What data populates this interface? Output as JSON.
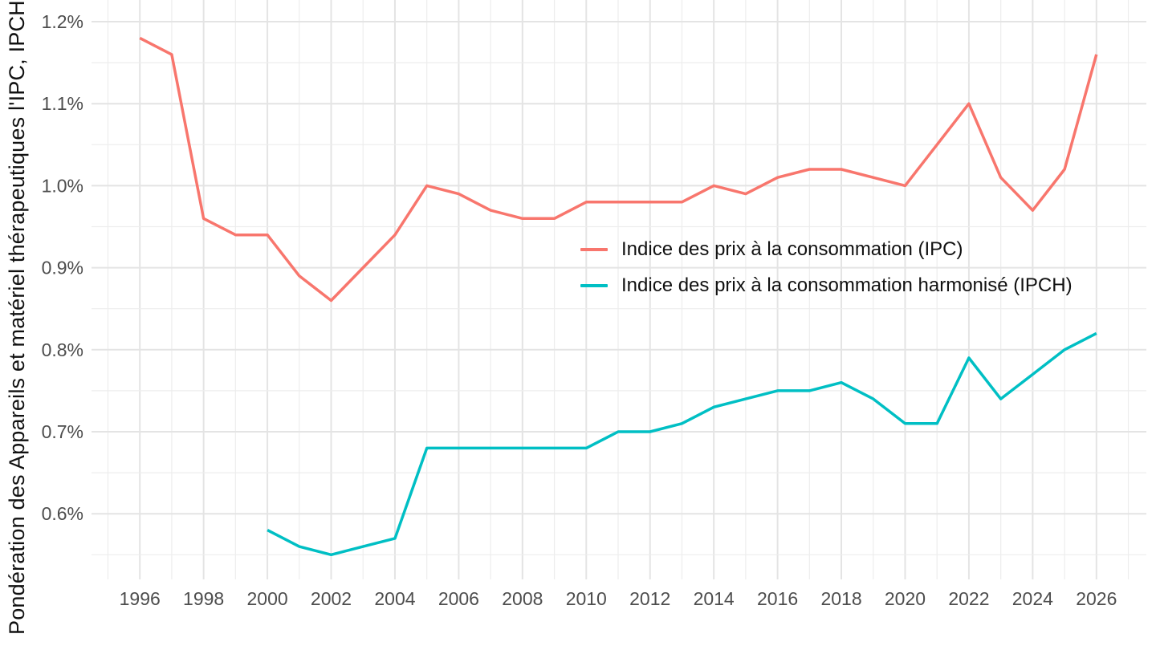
{
  "chart_data": {
    "type": "line",
    "title": "",
    "xlabel": "",
    "ylabel": "Pondération des Appareils et matériel thérapeutiques l'IPC, IPCH",
    "x_ticks": [
      1996,
      1998,
      2000,
      2002,
      2004,
      2006,
      2008,
      2010,
      2012,
      2014,
      2016,
      2018,
      2020,
      2022,
      2024,
      2026
    ],
    "y_ticks": [
      {
        "label": "1.2%",
        "value": 1.2
      },
      {
        "label": "1.1%",
        "value": 1.1
      },
      {
        "label": "1.0%",
        "value": 1.0
      },
      {
        "label": "0.9%",
        "value": 0.9
      },
      {
        "label": "0.8%",
        "value": 0.8
      },
      {
        "label": "0.7%",
        "value": 0.7
      },
      {
        "label": "0.6%",
        "value": 0.6
      }
    ],
    "xlim": [
      1994.5,
      2027.5
    ],
    "ylim": [
      0.52,
      1.226
    ],
    "grid": "major and minor, light gray, no axis lines, no tick marks",
    "legend_position": "inside-right-center",
    "series": [
      {
        "name": "Indice des prix à la consommation (IPC)",
        "color": "#F8766D",
        "x": [
          1996,
          1997,
          1998,
          1999,
          2000,
          2001,
          2002,
          2003,
          2004,
          2005,
          2006,
          2007,
          2008,
          2009,
          2010,
          2011,
          2012,
          2013,
          2014,
          2015,
          2016,
          2017,
          2018,
          2019,
          2020,
          2021,
          2022,
          2023,
          2024,
          2025,
          2026
        ],
        "values": [
          1.18,
          1.16,
          0.96,
          0.94,
          0.94,
          0.89,
          0.86,
          0.9,
          0.94,
          1.0,
          0.99,
          0.97,
          0.96,
          0.96,
          0.98,
          0.98,
          0.98,
          0.98,
          1.0,
          0.99,
          1.01,
          1.02,
          1.02,
          1.01,
          1.0,
          1.05,
          1.1,
          1.01,
          0.97,
          1.02,
          1.16
        ]
      },
      {
        "name": "Indice des prix à la consommation harmonisé (IPCH)",
        "color": "#00BFC4",
        "x": [
          2000,
          2001,
          2002,
          2003,
          2004,
          2005,
          2006,
          2007,
          2008,
          2009,
          2010,
          2011,
          2012,
          2013,
          2014,
          2015,
          2016,
          2017,
          2018,
          2019,
          2020,
          2021,
          2022,
          2023,
          2024,
          2025,
          2026
        ],
        "values": [
          0.58,
          0.56,
          0.55,
          0.56,
          0.57,
          0.68,
          0.68,
          0.68,
          0.68,
          0.68,
          0.68,
          0.7,
          0.7,
          0.71,
          0.73,
          0.74,
          0.75,
          0.75,
          0.76,
          0.74,
          0.71,
          0.71,
          0.79,
          0.74,
          0.77,
          0.8,
          0.82
        ]
      }
    ]
  },
  "colors": {
    "series_ipc": "#F8766D",
    "series_ipch": "#00BFC4",
    "grid_major": "#E4E4E4",
    "grid_minor": "#EDEDED",
    "tick_text": "#4d4d4d",
    "label_text": "#111111",
    "background": "#ffffff"
  }
}
